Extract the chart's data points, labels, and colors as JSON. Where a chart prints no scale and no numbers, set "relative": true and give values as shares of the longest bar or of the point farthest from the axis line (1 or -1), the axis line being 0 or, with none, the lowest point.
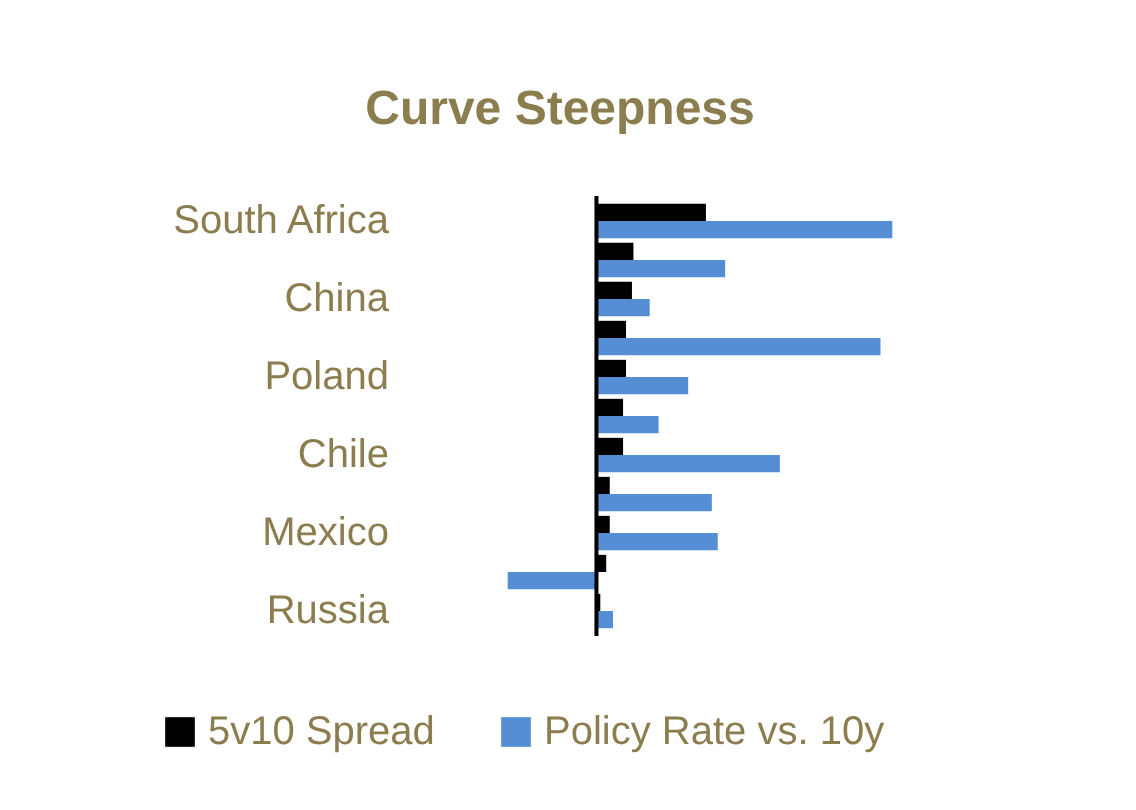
{
  "chart_data": {
    "type": "bar",
    "orientation": "horizontal",
    "relative": true,
    "title": "Curve Steepness",
    "categories": [
      "South Africa",
      null,
      "China",
      null,
      "Poland",
      null,
      "Chile",
      null,
      "Mexico",
      null,
      "Russia"
    ],
    "series": [
      {
        "name": "5v10 Spread",
        "color": "#000000",
        "values": [
          0.37,
          0.125,
          0.12,
          0.1,
          0.1,
          0.09,
          0.09,
          0.045,
          0.045,
          0.033,
          0.013
        ]
      },
      {
        "name": "Policy Rate vs. 10y",
        "color": "#558ed5",
        "values": [
          1,
          0.435,
          0.18,
          0.96,
          0.31,
          0.21,
          0.62,
          0.39,
          0.41,
          -0.3,
          0.056
        ]
      }
    ],
    "legend": "bottom"
  }
}
